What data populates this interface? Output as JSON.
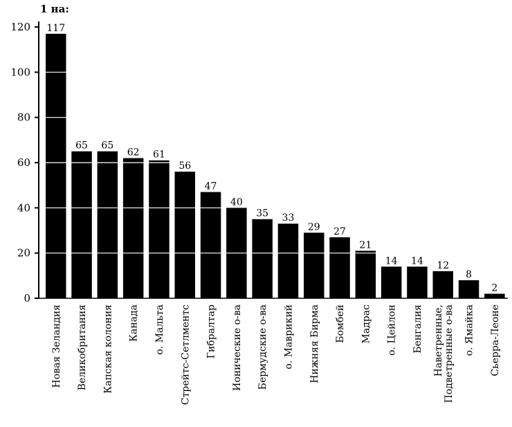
{
  "chart_data": {
    "type": "bar",
    "title": "",
    "unit_label": "1 на:",
    "xlabel": "",
    "ylabel": "",
    "ylim": [
      0,
      120
    ],
    "yticks": [
      0,
      20,
      40,
      60,
      80,
      100,
      120
    ],
    "grid": "horizontal white lines across bars at each tick",
    "legend": "none",
    "bar_color": "#000000",
    "categories": [
      [
        "Новая Зеландия"
      ],
      [
        "Великобритания"
      ],
      [
        "Капская колония"
      ],
      [
        "Канада"
      ],
      [
        "о. Мальта"
      ],
      [
        "Стрейтс-Сетлментс"
      ],
      [
        "Гибралтар"
      ],
      [
        "Ионические о-ва"
      ],
      [
        "Бермудские о-ва"
      ],
      [
        "о. Маврикий"
      ],
      [
        "Нижняя Бирма"
      ],
      [
        "Бомбей"
      ],
      [
        "Мадрас"
      ],
      [
        "о. Цейлон"
      ],
      [
        "Бенгалия"
      ],
      [
        "Наветренные,",
        "Подветренные о-ва"
      ],
      [
        "о. Ямайка"
      ],
      [
        "Сьерра-Леоне"
      ]
    ],
    "values": [
      117,
      65,
      65,
      62,
      61,
      56,
      47,
      40,
      35,
      33,
      29,
      27,
      21,
      14,
      14,
      12,
      8,
      2
    ]
  }
}
